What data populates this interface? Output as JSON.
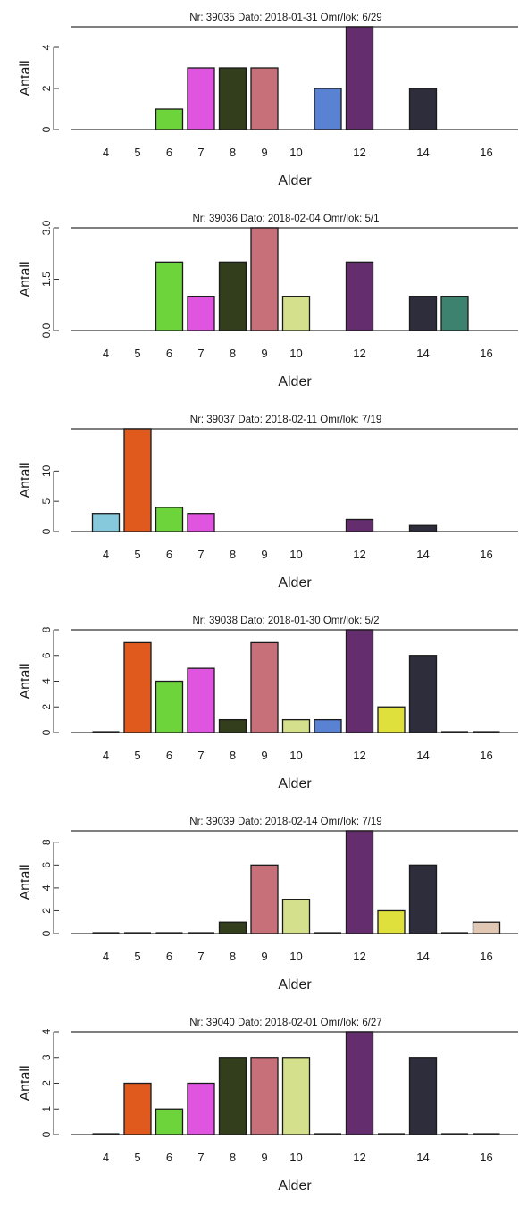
{
  "shared": {
    "xlabel": "Alder",
    "ylabel": "Antall",
    "ages": [
      4,
      5,
      6,
      7,
      8,
      9,
      10,
      11,
      12,
      13,
      14,
      15,
      16
    ],
    "xtick_labels": [
      "4",
      "5",
      "6",
      "7",
      "8",
      "9",
      "10",
      "12",
      "14",
      "16"
    ],
    "age_colors": {
      "4": "#86c8dc",
      "5": "#e05a1e",
      "6": "#6ed43c",
      "7": "#e055e0",
      "8": "#323e1c",
      "9": "#c8707a",
      "10": "#d4e08c",
      "11": "#5a82d2",
      "12": "#642d6e",
      "13": "#e0e03c",
      "14": "#2d2d3c",
      "15": "#3c826e",
      "16": "#e0c8b4"
    }
  },
  "chart_data": [
    {
      "type": "bar",
      "title": "Nr: 39035 Dato: 2018-01-31 Omr/lok: 6/29",
      "xlabel": "Alder",
      "ylabel": "Antall",
      "x": [
        6,
        7,
        8,
        9,
        11,
        12,
        14
      ],
      "values": [
        1,
        3,
        3,
        3,
        2,
        5,
        2
      ],
      "ylim": [
        0,
        5
      ],
      "yticks": [
        0,
        2,
        4
      ],
      "ytick_labels": [
        "0",
        "2",
        "4"
      ]
    },
    {
      "type": "bar",
      "title": "Nr: 39036 Dato: 2018-02-04 Omr/lok: 5/1",
      "xlabel": "Alder",
      "ylabel": "Antall",
      "x": [
        6,
        7,
        8,
        9,
        10,
        12,
        14,
        15
      ],
      "values": [
        2,
        1,
        2,
        3,
        1,
        2,
        1,
        1
      ],
      "ylim": [
        0,
        3
      ],
      "yticks": [
        0,
        1.5,
        3
      ],
      "ytick_labels": [
        "0.0",
        "1.5",
        "3.0"
      ]
    },
    {
      "type": "bar",
      "title": "Nr: 39037 Dato: 2018-02-11 Omr/lok: 7/19",
      "xlabel": "Alder",
      "ylabel": "Antall",
      "x": [
        4,
        5,
        6,
        7,
        12,
        14
      ],
      "values": [
        3,
        17,
        4,
        3,
        2,
        1
      ],
      "ylim": [
        0,
        17
      ],
      "yticks": [
        0,
        5,
        10
      ],
      "ytick_labels": [
        "0",
        "5",
        "10"
      ]
    },
    {
      "type": "bar",
      "title": "Nr: 39038 Dato: 2018-01-30 Omr/lok: 5/2",
      "xlabel": "Alder",
      "ylabel": "Antall",
      "x": [
        4,
        5,
        6,
        7,
        8,
        9,
        10,
        11,
        12,
        13,
        14,
        15,
        16
      ],
      "values": [
        0,
        7,
        4,
        5,
        1,
        7,
        1,
        1,
        8,
        2,
        6,
        0,
        0
      ],
      "ylim": [
        0,
        8
      ],
      "yticks": [
        0,
        2,
        4,
        6,
        8
      ],
      "ytick_labels": [
        "0",
        "2",
        "4",
        "6",
        "8"
      ]
    },
    {
      "type": "bar",
      "title": "Nr: 39039 Dato: 2018-02-14 Omr/lok: 7/19",
      "xlabel": "Alder",
      "ylabel": "Antall",
      "x": [
        4,
        5,
        6,
        7,
        8,
        9,
        10,
        11,
        12,
        13,
        14,
        15,
        16
      ],
      "values": [
        0,
        0,
        0,
        0,
        1,
        6,
        3,
        0,
        9,
        2,
        6,
        0,
        1
      ],
      "ylim": [
        0,
        9
      ],
      "yticks": [
        0,
        2,
        4,
        6,
        8
      ],
      "ytick_labels": [
        "0",
        "2",
        "4",
        "6",
        "8"
      ]
    },
    {
      "type": "bar",
      "title": "Nr: 39040 Dato: 2018-02-01 Omr/lok: 6/27",
      "xlabel": "Alder",
      "ylabel": "Antall",
      "x": [
        4,
        5,
        6,
        7,
        8,
        9,
        10,
        11,
        12,
        13,
        14,
        15,
        16
      ],
      "values": [
        0,
        2,
        1,
        2,
        3,
        3,
        3,
        0,
        4,
        0,
        3,
        0,
        0
      ],
      "ylim": [
        0,
        4
      ],
      "yticks": [
        0,
        1,
        2,
        3,
        4
      ],
      "ytick_labels": [
        "0",
        "1",
        "2",
        "3",
        "4"
      ]
    }
  ]
}
